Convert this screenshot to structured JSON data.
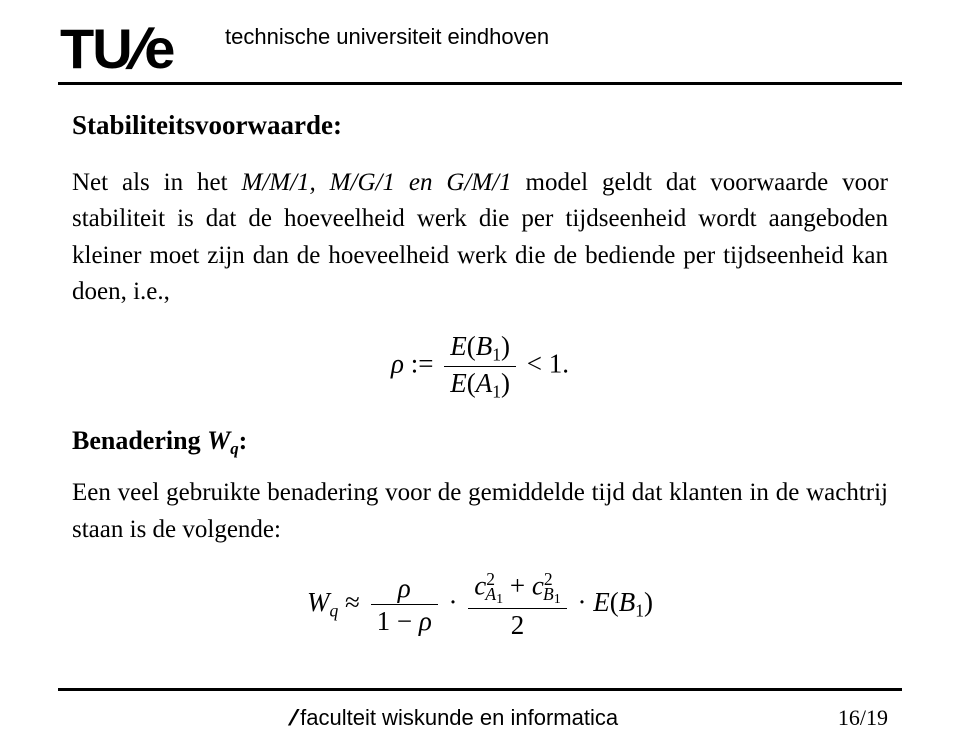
{
  "header": {
    "logo_main": "TU",
    "logo_slash": "/",
    "logo_suffix": "e",
    "university": "technische universiteit eindhoven"
  },
  "content": {
    "heading": "Stabiliteitsvoorwaarde:",
    "para1_pre": "Net als in het ",
    "para1_models": "M/M/1, M/G/1 en G/M/1",
    "para1_post": " model geldt dat voorwaarde voor stabiliteit is dat de hoeveelheid werk die per tijdseenheid wordt aangeboden kleiner moet zijn dan de hoeveelheid werk die de bediende per tijdseenheid kan doen, i.e.,",
    "formula1": {
      "lhs_var": "ρ",
      "assign": " := ",
      "num_E": "E",
      "num_B": "B",
      "num_sub": "1",
      "den_E": "E",
      "den_A": "A",
      "den_sub": "1",
      "rhs": " < 1."
    },
    "subheading_pre": "Benadering ",
    "subheading_var": "W",
    "subheading_sub": "q",
    "subheading_post": ":",
    "para2": "Een veel gebruikte benadering voor de gemiddelde tijd dat klanten in de wachtrij staan is de volgende:",
    "formula2": {
      "W": "W",
      "W_sub": "q",
      "approx": " ≈ ",
      "f1_num": "ρ",
      "f1_den_pre": "1 − ",
      "f1_den_var": "ρ",
      "dot1": " · ",
      "c": "c",
      "A": "A",
      "one": "1",
      "two": "2",
      "plus": " + ",
      "B": "B",
      "den2": "2",
      "dot2": " · ",
      "E": "E",
      "Bp": "B",
      "Bp_sub": "1"
    }
  },
  "footer": {
    "dept_slash": "/",
    "dept": "faculteit wiskunde en informatica",
    "page_cur": "16",
    "page_sep": "/",
    "page_total": "19"
  },
  "colors": {
    "text": "#000000",
    "background": "#ffffff"
  }
}
